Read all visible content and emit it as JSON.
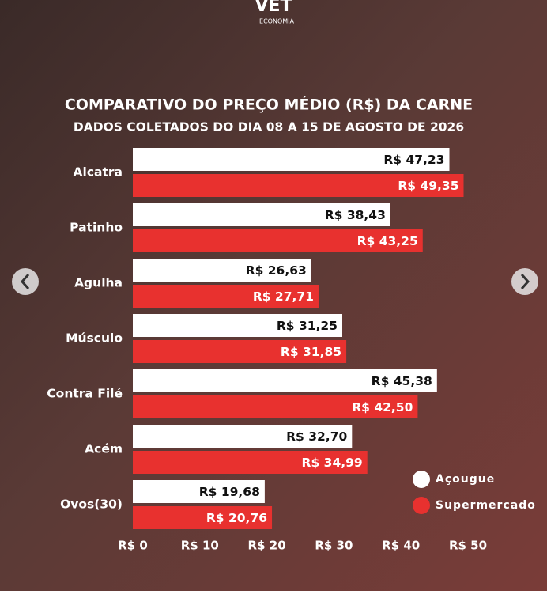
{
  "logo": {
    "mark": "VET",
    "name": "ECONOMIA"
  },
  "chart_data": {
    "type": "bar",
    "orientation": "horizontal",
    "title": "COMPARATIVO DO PREÇO MÉDIO (R$) DA CARNE",
    "subtitle": "DADOS COLETADOS DO DIA 08 A 15 DE AGOSTO DE 2026",
    "categories": [
      "Alcatra",
      "Patinho",
      "Agulha",
      "Músculo",
      "Contra Filé",
      "Acém",
      "Ovos(30)"
    ],
    "series": [
      {
        "name": "Açougue",
        "color": "#ffffff",
        "label_color": "#111111",
        "values": [
          47.23,
          38.43,
          26.63,
          31.25,
          45.38,
          32.7,
          19.68
        ],
        "value_labels": [
          "R$ 47,23",
          "R$ 38,43",
          "R$ 26,63",
          "R$ 31,25",
          "R$ 45,38",
          "R$ 32,70",
          "R$ 19,68"
        ]
      },
      {
        "name": "Supermercado",
        "color": "#e8312f",
        "label_color": "#ffffff",
        "values": [
          49.35,
          43.25,
          27.71,
          31.85,
          42.5,
          34.99,
          20.76
        ],
        "value_labels": [
          "R$ 49,35",
          "R$ 43,25",
          "R$ 27,71",
          "R$ 31,85",
          "R$ 42,50",
          "R$ 34,99",
          "R$ 20,76"
        ]
      }
    ],
    "xlim": [
      0,
      50
    ],
    "xticks": [
      {
        "value": 0,
        "label": "R$ 0"
      },
      {
        "value": 10,
        "label": "R$ 10"
      },
      {
        "value": 20,
        "label": "R$ 20"
      },
      {
        "value": 30,
        "label": "R$ 30"
      },
      {
        "value": 40,
        "label": "R$ 40"
      },
      {
        "value": 50,
        "label": "R$ 50"
      }
    ],
    "grid": false,
    "legend": "lower-right"
  }
}
